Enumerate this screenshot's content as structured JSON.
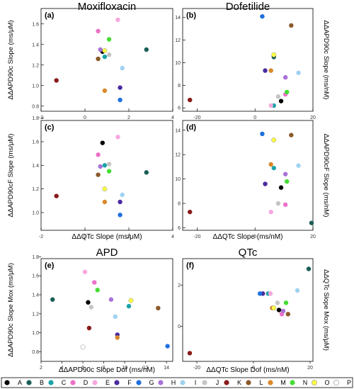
{
  "legend": [
    {
      "label": "A",
      "color": "#000000"
    },
    {
      "label": "B",
      "color": "#1a5e57"
    },
    {
      "label": "C",
      "color": "#1aa3a8"
    },
    {
      "label": "D",
      "color": "#ec6fc8"
    },
    {
      "label": "E",
      "color": "#f6a8de"
    },
    {
      "label": "F",
      "color": "#4a2aa0"
    },
    {
      "label": "G",
      "color": "#1f6fe0"
    },
    {
      "label": "H",
      "color": "#a872d8"
    },
    {
      "label": "I",
      "color": "#9fd2f0"
    },
    {
      "label": "J",
      "color": "#c4c4c4"
    },
    {
      "label": "K",
      "color": "#8a1a1a"
    },
    {
      "label": "L",
      "color": "#8a5a2a"
    },
    {
      "label": "M",
      "color": "#d9892a"
    },
    {
      "label": "N",
      "color": "#44dd33"
    },
    {
      "label": "O",
      "color": "#ffff44"
    },
    {
      "label": "P",
      "color": "#ffffff"
    }
  ],
  "chart_data": [
    {
      "panel": "(a)",
      "type": "scatter",
      "title": "Moxifloxacin",
      "xlabel": "",
      "ylabel": "ΔΔAPD90c Slope (ms/μM)",
      "xlim": [
        -2,
        4
      ],
      "ylim": [
        0.75,
        1.75
      ],
      "xticks": [
        -2,
        0,
        2,
        4
      ],
      "yticks": [
        0.8,
        1.0,
        1.2,
        1.4,
        1.6
      ],
      "points": [
        {
          "label": "A",
          "x": 0.8,
          "y": 1.33
        },
        {
          "label": "B",
          "x": 2.8,
          "y": 1.35
        },
        {
          "label": "C",
          "x": 0.9,
          "y": 1.28
        },
        {
          "label": "D",
          "x": 0.6,
          "y": 1.53
        },
        {
          "label": "E",
          "x": 1.5,
          "y": 1.64
        },
        {
          "label": "F",
          "x": 1.6,
          "y": 0.98
        },
        {
          "label": "G",
          "x": 1.6,
          "y": 0.86
        },
        {
          "label": "H",
          "x": 0.7,
          "y": 1.35
        },
        {
          "label": "I",
          "x": 1.7,
          "y": 1.17
        },
        {
          "label": "J",
          "x": 1.1,
          "y": 1.3
        },
        {
          "label": "K",
          "x": -1.3,
          "y": 1.05
        },
        {
          "label": "L",
          "x": 0.6,
          "y": 1.26
        },
        {
          "label": "M",
          "x": 0.9,
          "y": 0.95
        },
        {
          "label": "N",
          "x": 1.1,
          "y": 1.45
        },
        {
          "label": "O",
          "x": 0.9,
          "y": 1.34
        }
      ]
    },
    {
      "panel": "(b)",
      "type": "scatter",
      "title": "Dofetilide",
      "xlabel": "",
      "ylabel": "ΔΔAPD90c Slope (ms/nM)",
      "xlim": [
        -25,
        20
      ],
      "ylim": [
        5.7,
        14.8
      ],
      "xticks": [
        -20,
        0,
        20
      ],
      "yticks": [
        6,
        8,
        10,
        12,
        14
      ],
      "points": [
        {
          "label": "A",
          "x": 9,
          "y": 6.6
        },
        {
          "label": "B",
          "x": 6.5,
          "y": 10.5
        },
        {
          "label": "C",
          "x": 6.5,
          "y": 6.2
        },
        {
          "label": "D",
          "x": 10.5,
          "y": 7.2
        },
        {
          "label": "E",
          "x": 5.5,
          "y": 6.2
        },
        {
          "label": "F",
          "x": 3.5,
          "y": 9.3
        },
        {
          "label": "G",
          "x": 2.5,
          "y": 14.1
        },
        {
          "label": "H",
          "x": 10.5,
          "y": 8.7
        },
        {
          "label": "I",
          "x": 15,
          "y": 9.1
        },
        {
          "label": "J",
          "x": 8,
          "y": 7
        },
        {
          "label": "K",
          "x": -22.5,
          "y": 6.7
        },
        {
          "label": "L",
          "x": 12.5,
          "y": 13.3
        },
        {
          "label": "M",
          "x": 5.5,
          "y": 9.3
        },
        {
          "label": "N",
          "x": 11,
          "y": 7.4
        },
        {
          "label": "O",
          "x": 6.5,
          "y": 10.7
        }
      ]
    },
    {
      "panel": "(c)",
      "type": "scatter",
      "title": "",
      "xlabel": "ΔΔQTc Slope (ms/μM)",
      "ylabel": "ΔΔAPD90cF Slope (ms/μM)",
      "xlim": [
        -2,
        4
      ],
      "ylim": [
        0.85,
        1.78
      ],
      "xticks": [
        -2,
        0,
        2,
        4
      ],
      "yticks": [
        1.0,
        1.2,
        1.4,
        1.6,
        1.8
      ],
      "points": [
        {
          "label": "A",
          "x": 0.8,
          "y": 1.59
        },
        {
          "label": "B",
          "x": 2.8,
          "y": 1.34
        },
        {
          "label": "C",
          "x": 0.9,
          "y": 1.4
        },
        {
          "label": "D",
          "x": 0.6,
          "y": 1.49
        },
        {
          "label": "E",
          "x": 1.5,
          "y": 1.64
        },
        {
          "label": "F",
          "x": 1.6,
          "y": 1.09
        },
        {
          "label": "G",
          "x": 1.6,
          "y": 0.98
        },
        {
          "label": "H",
          "x": 0.7,
          "y": 1.39
        },
        {
          "label": "I",
          "x": 1.7,
          "y": 1.15
        },
        {
          "label": "J",
          "x": 1.1,
          "y": 1.41
        },
        {
          "label": "K",
          "x": -1.3,
          "y": 1.14
        },
        {
          "label": "L",
          "x": 0.6,
          "y": 1.32
        },
        {
          "label": "M",
          "x": 0.9,
          "y": 1.09
        },
        {
          "label": "N",
          "x": 1.1,
          "y": 1.35
        },
        {
          "label": "O",
          "x": 0.9,
          "y": 1.2
        }
      ]
    },
    {
      "panel": "(d)",
      "type": "scatter",
      "title": "",
      "xlabel": "ΔΔQTc Slope (ms/nM)",
      "ylabel": "ΔΔAPD90cF Slope (ms/nM)",
      "xlim": [
        -25,
        20
      ],
      "ylim": [
        5.8,
        14.8
      ],
      "xticks": [
        -20,
        0,
        20
      ],
      "yticks": [
        6,
        8,
        10,
        12,
        14
      ],
      "points": [
        {
          "label": "A",
          "x": 9,
          "y": 9.3
        },
        {
          "label": "B",
          "x": 19.5,
          "y": 6.4
        },
        {
          "label": "C",
          "x": 6.5,
          "y": 10.9
        },
        {
          "label": "D",
          "x": 10.5,
          "y": 7.9
        },
        {
          "label": "E",
          "x": 5.5,
          "y": 7.3
        },
        {
          "label": "F",
          "x": 3.5,
          "y": 9.6
        },
        {
          "label": "G",
          "x": 2.5,
          "y": 13.7
        },
        {
          "label": "H",
          "x": 10.5,
          "y": 10.4
        },
        {
          "label": "I",
          "x": 15,
          "y": 11.1
        },
        {
          "label": "J",
          "x": 8,
          "y": 8
        },
        {
          "label": "K",
          "x": -22.5,
          "y": 7.3
        },
        {
          "label": "L",
          "x": 12.5,
          "y": 13.6
        },
        {
          "label": "M",
          "x": 5.5,
          "y": 11.2
        },
        {
          "label": "N",
          "x": 11,
          "y": 9.8
        },
        {
          "label": "O",
          "x": 6.5,
          "y": 13.2
        }
      ]
    },
    {
      "panel": "(e)",
      "type": "scatter",
      "title": "APD",
      "xlabel": "ΔΔAPD90c Slope Dof (ms/nM)",
      "ylabel": "ΔΔAPD90c Slope Mox (ms/μM)",
      "xlim": [
        2,
        14.6
      ],
      "ylim": [
        0.7,
        1.78
      ],
      "xticks": [
        2,
        4,
        6,
        8,
        10,
        12,
        14
      ],
      "yticks": [
        0.8,
        1.0,
        1.2,
        1.4,
        1.6,
        1.8
      ],
      "points": [
        {
          "label": "A",
          "x": 6.5,
          "y": 1.32
        },
        {
          "label": "B",
          "x": 3.1,
          "y": 1.35
        },
        {
          "label": "C",
          "x": 10.4,
          "y": 1.28
        },
        {
          "label": "D",
          "x": 7.1,
          "y": 1.53
        },
        {
          "label": "E",
          "x": 6.2,
          "y": 1.64
        },
        {
          "label": "F",
          "x": 9.3,
          "y": 0.98
        },
        {
          "label": "G",
          "x": 14.1,
          "y": 0.86
        },
        {
          "label": "H",
          "x": 8.7,
          "y": 1.35
        },
        {
          "label": "I",
          "x": 9.1,
          "y": 1.17
        },
        {
          "label": "J",
          "x": 6.8,
          "y": 1.27
        },
        {
          "label": "K",
          "x": 6.6,
          "y": 1.05
        },
        {
          "label": "L",
          "x": 13.2,
          "y": 1.26
        },
        {
          "label": "M",
          "x": 9.3,
          "y": 0.95
        },
        {
          "label": "N",
          "x": 7.4,
          "y": 1.45
        },
        {
          "label": "O",
          "x": 10.6,
          "y": 1.34
        },
        {
          "label": "P",
          "x": 6.0,
          "y": 0.85
        }
      ]
    },
    {
      "panel": "(f)",
      "type": "scatter",
      "title": "QTc",
      "xlabel": "ΔΔQTc Slope Dof (ms/nM)",
      "ylabel": "ΔΔQTc Slope Mox (ms/μM)",
      "xlim": [
        -25,
        21
      ],
      "ylim": [
        -1.7,
        3.3
      ],
      "xticks": [
        -20,
        0,
        20
      ],
      "yticks": [
        0,
        2
      ],
      "points": [
        {
          "label": "A",
          "x": 9,
          "y": 0.8
        },
        {
          "label": "B",
          "x": 19.5,
          "y": 2.8
        },
        {
          "label": "C",
          "x": 5.2,
          "y": 1.6
        },
        {
          "label": "D",
          "x": 10,
          "y": 0.6
        },
        {
          "label": "E",
          "x": 6,
          "y": 1.6
        },
        {
          "label": "F",
          "x": 3.3,
          "y": 1.6
        },
        {
          "label": "G",
          "x": 2.3,
          "y": 1.6
        },
        {
          "label": "H",
          "x": 10.5,
          "y": 0.75
        },
        {
          "label": "I",
          "x": 15.5,
          "y": 1.75
        },
        {
          "label": "J",
          "x": 8.5,
          "y": 1.15
        },
        {
          "label": "K",
          "x": -22.5,
          "y": -1.3
        },
        {
          "label": "L",
          "x": 12.2,
          "y": 0.6
        },
        {
          "label": "M",
          "x": 6.6,
          "y": 0.9
        },
        {
          "label": "N",
          "x": 11.5,
          "y": 1.15
        },
        {
          "label": "O",
          "x": 7.2,
          "y": 0.9
        }
      ]
    }
  ]
}
